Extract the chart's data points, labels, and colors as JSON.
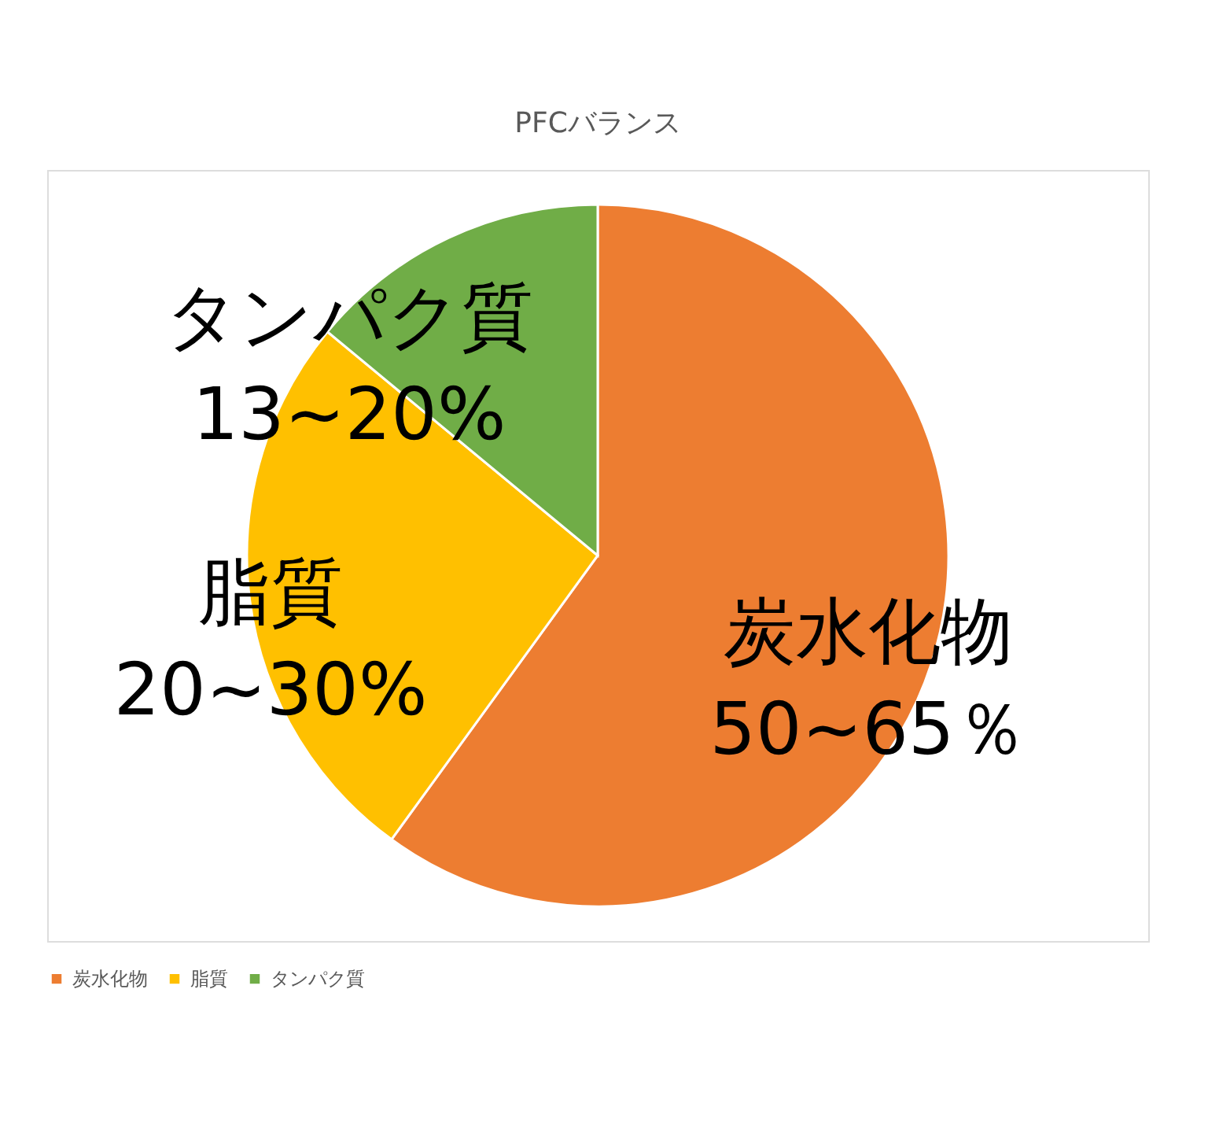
{
  "chart_data": {
    "type": "pie",
    "title": "PFCバランス",
    "categories": [
      "炭水化物",
      "脂質",
      "タンパク質"
    ],
    "values": [
      60,
      26,
      14
    ],
    "colors": [
      "#ed7d31",
      "#ffc000",
      "#70ad47"
    ],
    "annotations": [
      "50~65％",
      "20~30%",
      "13~20%"
    ],
    "legend": "bottom"
  }
}
